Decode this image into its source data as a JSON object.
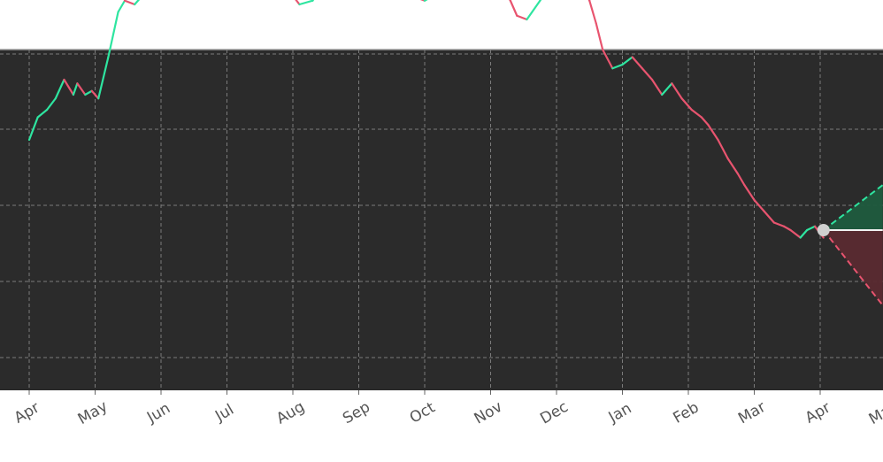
{
  "chart_data": {
    "type": "line",
    "title": "",
    "xlabel": "",
    "ylabel": "",
    "x_tick_labels": [
      "Apr",
      "May",
      "Jun",
      "Jul",
      "Aug",
      "Sep",
      "Oct",
      "Nov",
      "Dec",
      "Jan",
      "Feb",
      "Mar",
      "Apr",
      "May"
    ],
    "y_tick_labels": [],
    "grid": true,
    "background": "#2b2b2b",
    "colors": {
      "up": "#2ee5a0",
      "down": "#e8546f",
      "forecast_up_fill": "#1f5b3e",
      "forecast_down_fill": "#5a2a30",
      "marker": "#d0d0d0",
      "grid": "#8a8a8a"
    },
    "xlim": [
      0,
      13.9
    ],
    "ylim": [
      0,
      4.5
    ],
    "series": [
      {
        "x": [
          0.0,
          0.13,
          0.27,
          0.4,
          0.53,
          0.67,
          0.73,
          0.85,
          0.95,
          1.05,
          1.2,
          1.35,
          1.45,
          1.6,
          1.75,
          1.9,
          2.05,
          2.2,
          2.35,
          2.5,
          2.65,
          2.8,
          2.95,
          3.1,
          3.25,
          3.35,
          3.48,
          3.6,
          3.75,
          3.85,
          3.97,
          4.1,
          4.3,
          4.45,
          4.55,
          4.7,
          4.85,
          5.0,
          5.15,
          5.3,
          5.45,
          5.6,
          5.75,
          5.85,
          6.0,
          6.1,
          6.3,
          6.45,
          6.6,
          6.75,
          6.9,
          7.0,
          7.1,
          7.3,
          7.4,
          7.55,
          7.75,
          7.9,
          8.05,
          8.2,
          8.35,
          8.5,
          8.6,
          8.7,
          8.85,
          9.0,
          9.15,
          9.3,
          9.45,
          9.6,
          9.75,
          9.9,
          10.05,
          10.2,
          10.3,
          10.45,
          10.6,
          10.75,
          10.85,
          11.0,
          11.15,
          11.3,
          11.45,
          11.55,
          11.7,
          11.8,
          11.92,
          12.05
        ],
        "y": [
          1.2,
          1.5,
          1.6,
          1.75,
          2.0,
          1.8,
          1.95,
          1.8,
          1.85,
          1.75,
          2.3,
          2.9,
          3.05,
          3.0,
          3.15,
          3.25,
          3.5,
          3.55,
          3.75,
          3.9,
          4.1,
          4.05,
          3.6,
          3.45,
          3.25,
          3.2,
          3.4,
          3.55,
          3.5,
          3.25,
          3.15,
          3.0,
          3.05,
          3.25,
          3.2,
          3.15,
          3.15,
          3.25,
          3.25,
          3.2,
          3.25,
          3.2,
          3.15,
          3.1,
          3.05,
          3.1,
          3.2,
          3.6,
          3.95,
          4.0,
          3.95,
          3.6,
          3.35,
          3.05,
          2.85,
          2.8,
          3.05,
          3.25,
          3.5,
          3.55,
          3.3,
          3.05,
          2.75,
          2.4,
          2.15,
          2.2,
          2.3,
          2.15,
          2.0,
          1.8,
          1.95,
          1.75,
          1.6,
          1.5,
          1.4,
          1.2,
          0.95,
          0.75,
          0.6,
          0.4,
          0.25,
          0.1,
          0.05,
          0.0,
          -0.1,
          0.0,
          0.05,
          -0.1
        ]
      }
    ],
    "forecast": {
      "start": [
        12.05,
        0.0
      ],
      "end_x": 12.95,
      "upper": 0.6,
      "mid": 0.0,
      "lower": -1.0
    }
  }
}
